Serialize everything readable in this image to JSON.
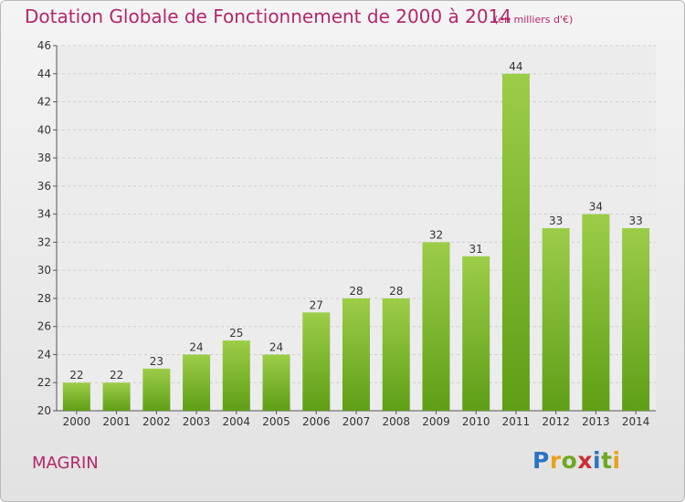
{
  "header": {
    "title": "Dotation Globale de Fonctionnement de 2000 à 2014",
    "subtitle": "(en milliers d'€)"
  },
  "commune": "MAGRIN",
  "logo": {
    "letters": [
      "P",
      "r",
      "o",
      "x",
      "i",
      "t",
      "i"
    ],
    "colors": [
      "#2a74c4",
      "#e8a21a",
      "#6fa823",
      "#cc2d34",
      "#2a74c4",
      "#6fa823",
      "#e8a21a"
    ]
  },
  "colors": {
    "bar_top": "#9ccd48",
    "bar_bottom": "#5f9e16",
    "grid": "#cfcfcf",
    "axis_text": "#333333"
  },
  "chart_data": {
    "type": "bar",
    "categories": [
      "2000",
      "2001",
      "2002",
      "2003",
      "2004",
      "2005",
      "2006",
      "2007",
      "2008",
      "2009",
      "2010",
      "2011",
      "2012",
      "2013",
      "2014"
    ],
    "values": [
      22,
      22,
      23,
      24,
      25,
      24,
      27,
      28,
      28,
      32,
      31,
      44,
      33,
      34,
      33
    ],
    "title": "Dotation Globale de Fonctionnement de 2000 à 2014",
    "subtitle": "(en milliers d'€)",
    "ylim": [
      20,
      46
    ],
    "yticks": [
      20,
      22,
      24,
      26,
      28,
      30,
      32,
      34,
      36,
      38,
      40,
      42,
      44,
      46
    ],
    "grid": true,
    "data_labels": true
  }
}
